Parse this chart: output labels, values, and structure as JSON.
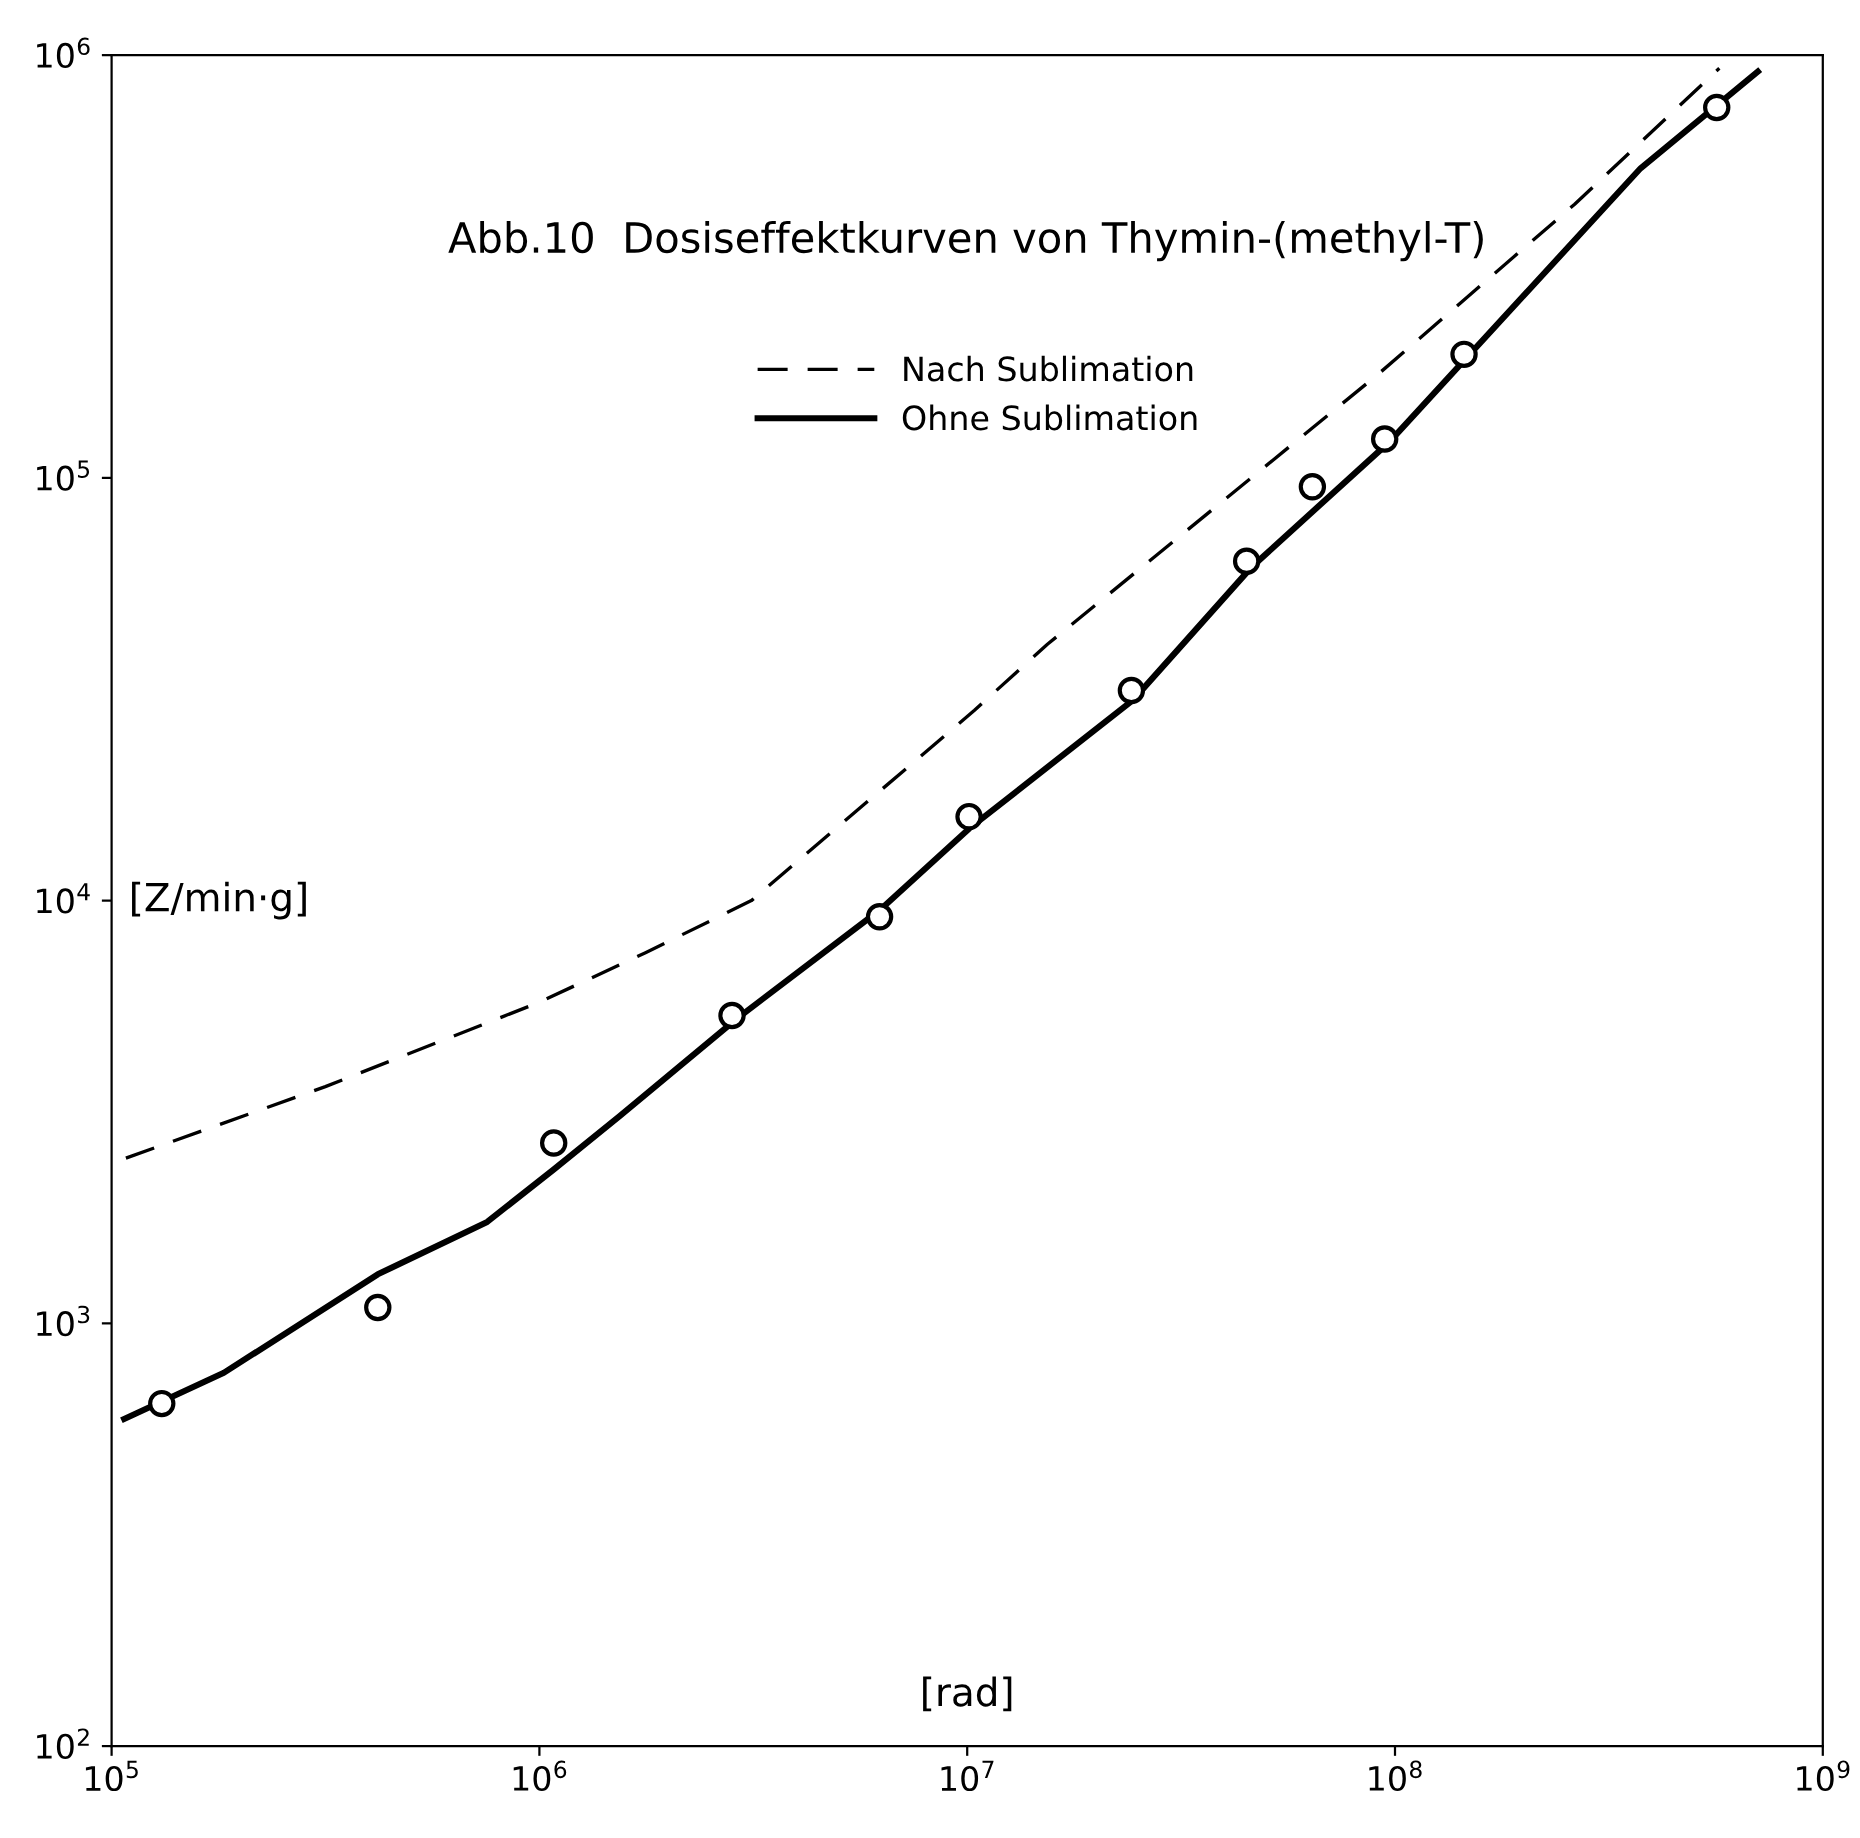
{
  "chart_data": {
    "type": "line",
    "title": "Abb.10  Dosiseffektkurven von Thymin-(methyl-T)",
    "xlabel": "[rad]",
    "ylabel": "[Z/min·g]",
    "log": "xy",
    "grid": false,
    "legend": "top",
    "xlim": [
      100000,
      1000000000
    ],
    "ylim": [
      100,
      1000000
    ],
    "xticks": [
      {
        "value": 100000,
        "label": "10$^{5}$"
      },
      {
        "value": 1000000,
        "label": "10$^{6}$"
      },
      {
        "value": 10000000,
        "label": "10$^{7}$"
      },
      {
        "value": 100000000,
        "label": "10$^{8}$"
      },
      {
        "value": 1000000000,
        "label": "10$^{9}$"
      }
    ],
    "yticks": [
      {
        "value": 100,
        "label": "10$^{2}$"
      },
      {
        "value": 1000,
        "label": "10$^{3}$"
      },
      {
        "value": 10000,
        "label": "10$^{4}$"
      },
      {
        "value": 100000,
        "label": "10$^{5}$"
      },
      {
        "value": 1000000,
        "label": "10$^{6}$"
      }
    ],
    "series": [
      {
        "name": "Nach Sublimation",
        "line_style": "dashed",
        "color": "#000000",
        "x": [
          108000,
          316000,
          1000000,
          1770000,
          3130000,
          10400000,
          15400000,
          90800000,
          263000000,
          573000000
        ],
        "values": [
          2460,
          3630,
          5750,
          7530,
          10000,
          28200,
          40400,
          175000,
          444000,
          931000
        ]
      },
      {
        "name": "Ohne Sublimation",
        "line_style": "solid",
        "color": "#000000",
        "x": [
          107000,
          183000,
          419000,
          755000,
          1080000,
          1540000,
          2910000,
          6270000,
          10100000,
          24400000,
          46200000,
          97300000,
          375000000,
          705000000
        ],
        "values": [
          594,
          764,
          1306,
          1738,
          2312,
          3090,
          5280,
          9530,
          14800,
          29800,
          61500,
          122000,
          540000,
          914000
        ]
      },
      {
        "type": "scatter",
        "marker": "circle",
        "color": "#000000",
        "x": [
          131000,
          419000,
          1080000,
          2820000,
          6240000,
          10100000,
          24200000,
          45000000,
          64100000,
          94600000,
          145000000,
          565000000
        ],
        "values": [
          646,
          1090,
          2670,
          5350,
          9160,
          15800,
          31400,
          63500,
          95300,
          123600,
          196000,
          752000
        ]
      }
    ]
  }
}
